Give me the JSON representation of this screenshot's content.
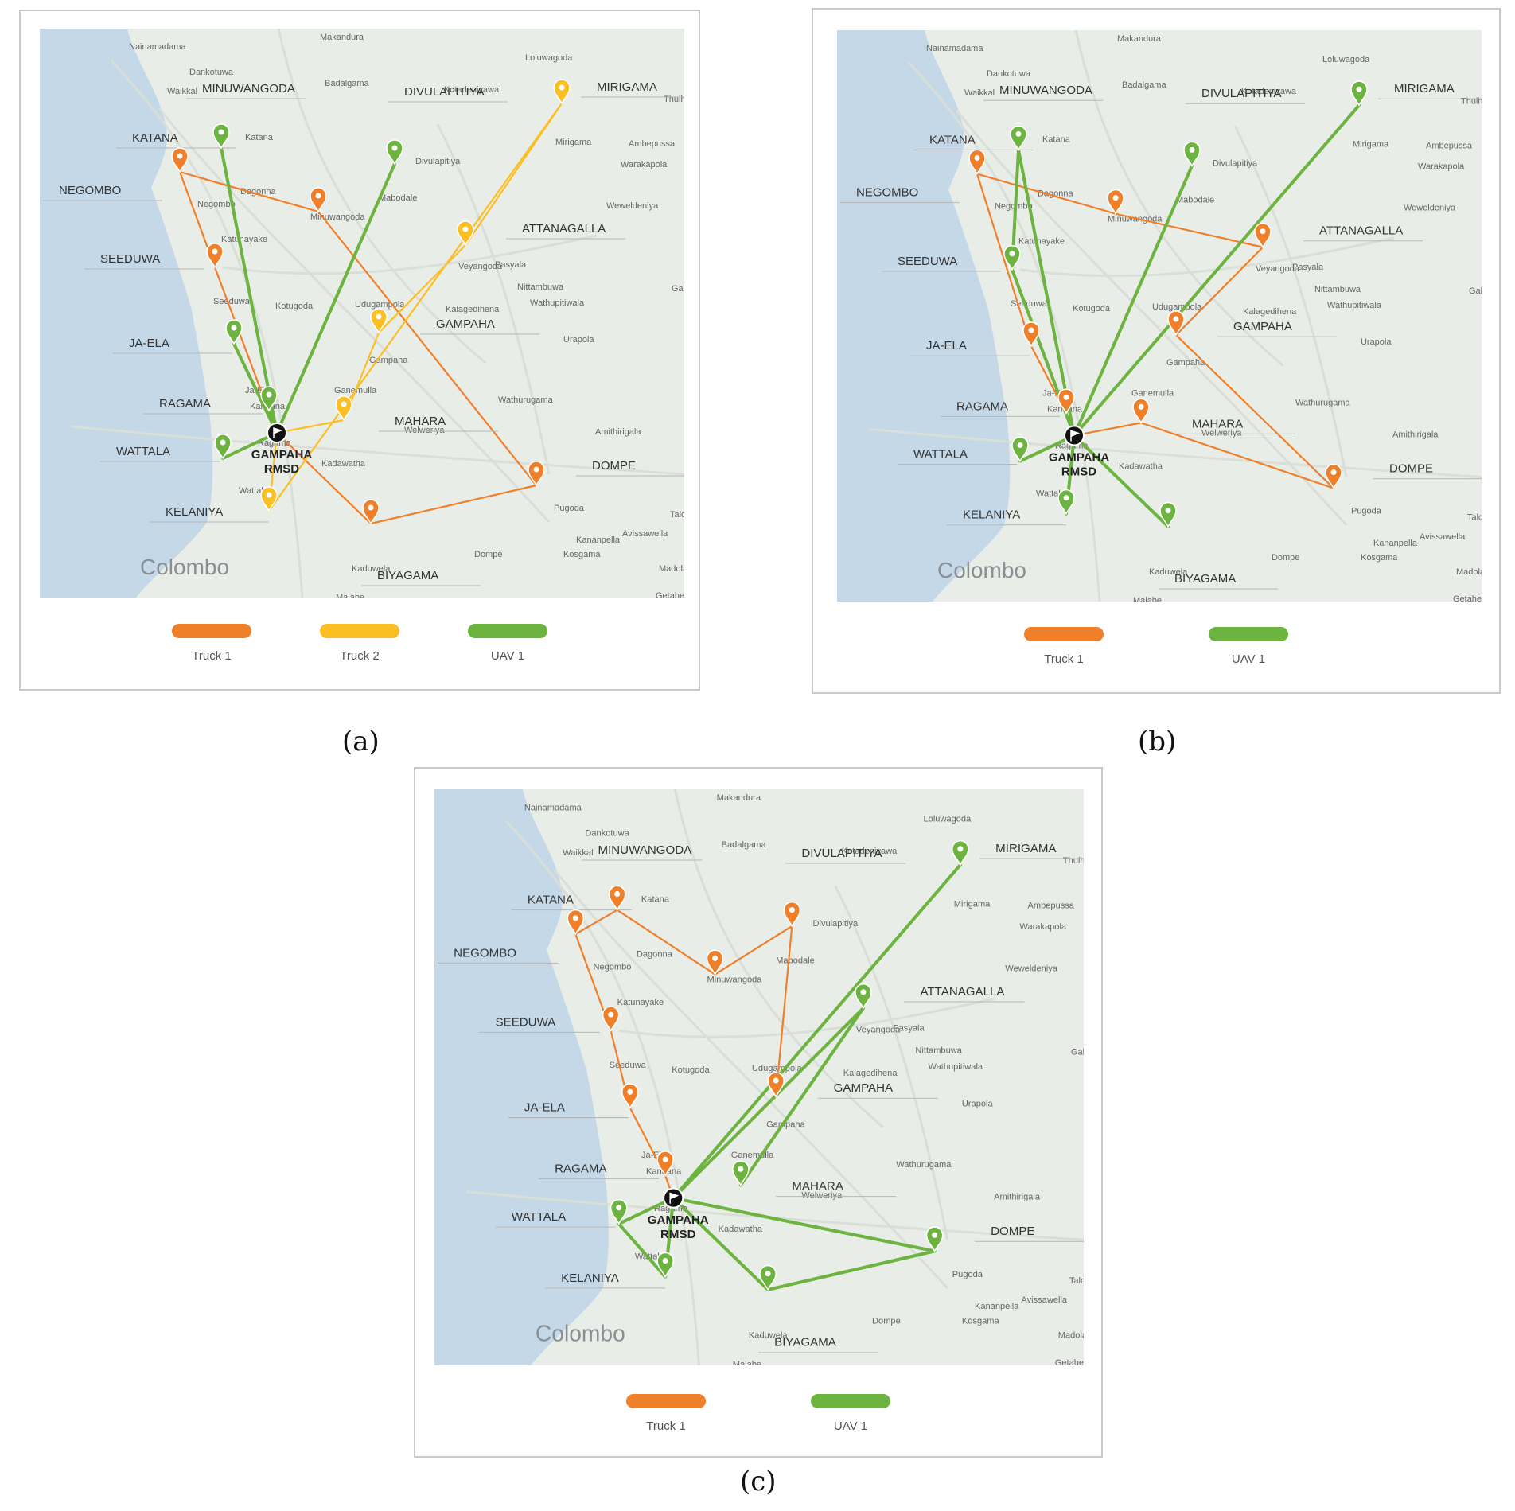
{
  "colors": {
    "truck1": "#f07f2a",
    "truck2": "#fbbf24",
    "uav1": "#6cb33f",
    "sea": "#c4d8e8",
    "land": "#e9ede8",
    "label": "#333333",
    "place": "#666666",
    "depot": "#111111"
  },
  "towns": [
    "Nainamadama",
    "Makandura",
    "Dankotuwa",
    "Loluwagoda",
    "Badalgama",
    "Waikkal",
    "Kotadeniyawa",
    "Thulh",
    "Ambepussa",
    "Warakapola",
    "Dagonna",
    "Weweldeniya",
    "Katunayake",
    "Pasyala",
    "Nittambuwa",
    "Wathupitiwala",
    "Kotugoda",
    "Udugampola",
    "Galaha",
    "Kalagedihena",
    "Urapola",
    "Gampaha",
    "Ganemulla",
    "Wathurugama",
    "Kandana",
    "Welweriya",
    "Amithirigala",
    "Ragama",
    "Mabodale",
    "Kadawatha",
    "Wattala",
    "Pugoda",
    "Kananpella",
    "Avissawella",
    "Kosgama",
    "Dompe",
    "Kaduwela",
    "Malabe",
    "Getahetta",
    "Madola",
    "Seeduwa",
    "Ja-Ela",
    "Negombo",
    "Colombo",
    "Katana",
    "Minuwangoda",
    "Divulapitiya",
    "Mirigama",
    "Veyangoda",
    "Talduwa"
  ],
  "depot_label": [
    "GAMPAHA",
    "RMSD"
  ],
  "panels": [
    {
      "id": "a",
      "caption": "(a)",
      "legend": [
        {
          "label": "Truck 1",
          "color_key": "truck1"
        },
        {
          "label": "Truck 2",
          "color_key": "truck2"
        },
        {
          "label": "UAV 1",
          "color_key": "uav1"
        }
      ],
      "regions": [
        {
          "name": "MINUWANGODA",
          "mode": "truck1"
        },
        {
          "name": "DIVULAPITIYA",
          "mode": "uav1"
        },
        {
          "name": "MIRIGAMA",
          "mode": "truck2"
        },
        {
          "name": "KATANA",
          "mode": "uav1"
        },
        {
          "name": "NEGOMBO",
          "mode": "truck1"
        },
        {
          "name": "ATTANAGALLA",
          "mode": "truck2"
        },
        {
          "name": "SEEDUWA",
          "mode": "truck1"
        },
        {
          "name": "GAMPAHA",
          "mode": "truck2"
        },
        {
          "name": "JA-ELA",
          "mode": "uav1"
        },
        {
          "name": "RAGAMA",
          "mode": "uav1"
        },
        {
          "name": "MAHARA",
          "mode": "truck2"
        },
        {
          "name": "WATTALA",
          "mode": "uav1"
        },
        {
          "name": "DOMPE",
          "mode": "truck1"
        },
        {
          "name": "KELANIYA",
          "mode": "truck2"
        },
        {
          "name": "BIYAGAMA",
          "mode": "truck1"
        }
      ],
      "routes": [
        {
          "mode": "truck1",
          "stops": [
            "DEPOT",
            "SEEDUWA",
            "NEGOMBO",
            "MINUWANGODA",
            "DOMPE",
            "BIYAGAMA",
            "DEPOT"
          ]
        },
        {
          "mode": "truck2",
          "stops": [
            "DEPOT",
            "MAHARA",
            "GAMPAHA",
            "ATTANAGALLA",
            "MIRIGAMA",
            "KELANIYA",
            "DEPOT"
          ]
        },
        {
          "mode": "uav1",
          "stops": [
            "DEPOT",
            "KATANA"
          ]
        },
        {
          "mode": "uav1",
          "stops": [
            "DEPOT",
            "DIVULAPITIYA"
          ]
        },
        {
          "mode": "uav1",
          "stops": [
            "DEPOT",
            "JA-ELA"
          ]
        },
        {
          "mode": "uav1",
          "stops": [
            "DEPOT",
            "RAGAMA"
          ]
        },
        {
          "mode": "uav1",
          "stops": [
            "DEPOT",
            "WATTALA"
          ]
        }
      ]
    },
    {
      "id": "b",
      "caption": "(b)",
      "legend": [
        {
          "label": "Truck 1",
          "color_key": "truck1"
        },
        {
          "label": "UAV 1",
          "color_key": "uav1"
        }
      ],
      "regions": [
        {
          "name": "MINUWANGODA",
          "mode": "truck1"
        },
        {
          "name": "DIVULAPITIYA",
          "mode": "uav1"
        },
        {
          "name": "MIRIGAMA",
          "mode": "uav1"
        },
        {
          "name": "KATANA",
          "mode": "uav1"
        },
        {
          "name": "NEGOMBO",
          "mode": "truck1"
        },
        {
          "name": "ATTANAGALLA",
          "mode": "truck1"
        },
        {
          "name": "SEEDUWA",
          "mode": "uav1"
        },
        {
          "name": "GAMPAHA",
          "mode": "truck1"
        },
        {
          "name": "JA-ELA",
          "mode": "truck1"
        },
        {
          "name": "RAGAMA",
          "mode": "truck1"
        },
        {
          "name": "MAHARA",
          "mode": "truck1"
        },
        {
          "name": "WATTALA",
          "mode": "uav1"
        },
        {
          "name": "DOMPE",
          "mode": "truck1"
        },
        {
          "name": "KELANIYA",
          "mode": "uav1"
        },
        {
          "name": "BIYAGAMA",
          "mode": "uav1"
        }
      ],
      "routes": [
        {
          "mode": "truck1",
          "stops": [
            "DEPOT",
            "RAGAMA",
            "JA-ELA",
            "NEGOMBO",
            "MINUWANGODA",
            "ATTANAGALLA",
            "GAMPAHA",
            "DOMPE",
            "MAHARA",
            "DEPOT"
          ]
        },
        {
          "mode": "uav1",
          "stops": [
            "DEPOT",
            "KATANA",
            "SEEDUWA",
            "DEPOT"
          ]
        },
        {
          "mode": "uav1",
          "stops": [
            "DEPOT",
            "MIRIGAMA"
          ]
        },
        {
          "mode": "uav1",
          "stops": [
            "DEPOT",
            "DIVULAPITIYA"
          ]
        },
        {
          "mode": "uav1",
          "stops": [
            "DEPOT",
            "WATTALA"
          ]
        },
        {
          "mode": "uav1",
          "stops": [
            "DEPOT",
            "KELANIYA"
          ]
        },
        {
          "mode": "uav1",
          "stops": [
            "DEPOT",
            "BIYAGAMA"
          ]
        }
      ]
    },
    {
      "id": "c",
      "caption": "(c)",
      "legend": [
        {
          "label": "Truck 1",
          "color_key": "truck1"
        },
        {
          "label": "UAV 1",
          "color_key": "uav1"
        }
      ],
      "regions": [
        {
          "name": "MINUWANGODA",
          "mode": "truck1"
        },
        {
          "name": "DIVULAPITIYA",
          "mode": "truck1"
        },
        {
          "name": "MIRIGAMA",
          "mode": "uav1"
        },
        {
          "name": "KATANA",
          "mode": "truck1"
        },
        {
          "name": "NEGOMBO",
          "mode": "truck1"
        },
        {
          "name": "ATTANAGALLA",
          "mode": "uav1"
        },
        {
          "name": "SEEDUWA",
          "mode": "truck1"
        },
        {
          "name": "GAMPAHA",
          "mode": "truck1"
        },
        {
          "name": "JA-ELA",
          "mode": "truck1"
        },
        {
          "name": "RAGAMA",
          "mode": "truck1"
        },
        {
          "name": "MAHARA",
          "mode": "uav1"
        },
        {
          "name": "WATTALA",
          "mode": "uav1"
        },
        {
          "name": "DOMPE",
          "mode": "uav1"
        },
        {
          "name": "KELANIYA",
          "mode": "uav1"
        },
        {
          "name": "BIYAGAMA",
          "mode": "uav1"
        }
      ],
      "routes": [
        {
          "mode": "truck1",
          "stops": [
            "DEPOT",
            "RAGAMA",
            "JA-ELA",
            "SEEDUWA",
            "NEGOMBO",
            "KATANA",
            "MINUWANGODA",
            "DIVULAPITIYA",
            "GAMPAHA",
            "DEPOT"
          ]
        },
        {
          "mode": "uav1",
          "stops": [
            "DEPOT",
            "MIRIGAMA"
          ]
        },
        {
          "mode": "uav1",
          "stops": [
            "DEPOT",
            "ATTANAGALLA",
            "MAHARA"
          ]
        },
        {
          "mode": "uav1",
          "stops": [
            "DEPOT",
            "WATTALA",
            "KELANIYA",
            "DEPOT"
          ]
        },
        {
          "mode": "uav1",
          "stops": [
            "DEPOT",
            "DOMPE",
            "BIYAGAMA",
            "DEPOT"
          ]
        }
      ]
    }
  ]
}
